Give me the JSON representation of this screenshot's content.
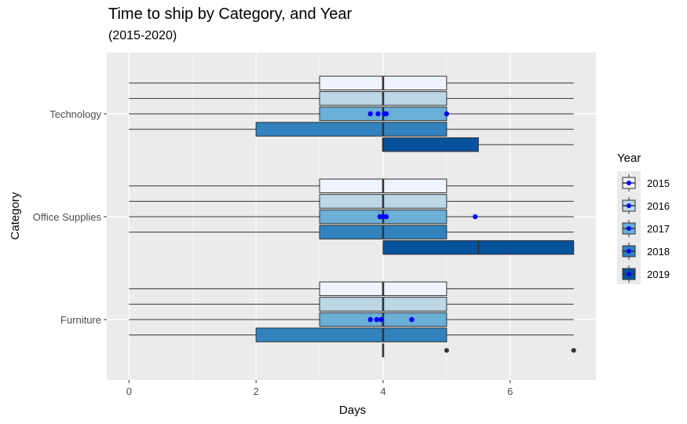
{
  "chart_data": {
    "type": "boxplot",
    "title": "Time to ship by Category, and Year",
    "subtitle": "(2015-2020)",
    "xlabel": "Days",
    "ylabel": "Category",
    "xlim": [
      -0.35,
      7.35
    ],
    "x_ticks": [
      0,
      2,
      4,
      6
    ],
    "grid": true,
    "legend": {
      "title": "Year",
      "position": "right",
      "items": [
        "2015",
        "2016",
        "2017",
        "2018",
        "2019"
      ]
    },
    "colors": {
      "2015": "#eff3ff",
      "2016": "#bdd7e7",
      "2017": "#6baed6",
      "2018": "#3182bd",
      "2019": "#08519c",
      "panel": "#ebebeb",
      "mean_point": "#0000ff",
      "outlier": "#333333"
    },
    "categories": [
      "Technology",
      "Office Supplies",
      "Furniture"
    ],
    "boxes": [
      {
        "category": "Technology",
        "year": "2015",
        "min": 0,
        "q1": 3,
        "median": 4,
        "q3": 5,
        "max": 7
      },
      {
        "category": "Technology",
        "year": "2016",
        "min": 0,
        "q1": 3,
        "median": 4,
        "q3": 5,
        "max": 7
      },
      {
        "category": "Technology",
        "year": "2017",
        "min": 0,
        "q1": 3,
        "median": 4,
        "q3": 5,
        "max": 7
      },
      {
        "category": "Technology",
        "year": "2018",
        "min": 0,
        "q1": 2,
        "median": 4,
        "q3": 5,
        "max": 7
      },
      {
        "category": "Technology",
        "year": "2019",
        "min": 4,
        "q1": 4,
        "median": 4,
        "q3": 5.5,
        "max": 7
      },
      {
        "category": "Office Supplies",
        "year": "2015",
        "min": 0,
        "q1": 3,
        "median": 4,
        "q3": 5,
        "max": 7
      },
      {
        "category": "Office Supplies",
        "year": "2016",
        "min": 0,
        "q1": 3,
        "median": 4,
        "q3": 5,
        "max": 7
      },
      {
        "category": "Office Supplies",
        "year": "2017",
        "min": 0,
        "q1": 3,
        "median": 4,
        "q3": 5,
        "max": 7
      },
      {
        "category": "Office Supplies",
        "year": "2018",
        "min": 0,
        "q1": 3,
        "median": 4,
        "q3": 5,
        "max": 7
      },
      {
        "category": "Office Supplies",
        "year": "2019",
        "min": 4,
        "q1": 4,
        "median": 5.5,
        "q3": 7,
        "max": 7
      },
      {
        "category": "Furniture",
        "year": "2015",
        "min": 0,
        "q1": 3,
        "median": 4,
        "q3": 5,
        "max": 7
      },
      {
        "category": "Furniture",
        "year": "2016",
        "min": 0,
        "q1": 3,
        "median": 4,
        "q3": 5,
        "max": 7
      },
      {
        "category": "Furniture",
        "year": "2017",
        "min": 0,
        "q1": 3,
        "median": 4,
        "q3": 5,
        "max": 7
      },
      {
        "category": "Furniture",
        "year": "2018",
        "min": 0,
        "q1": 2,
        "median": 4,
        "q3": 5,
        "max": 7
      },
      {
        "category": "Furniture",
        "year": "2019",
        "min": 4,
        "q1": 4,
        "median": 4,
        "q3": 4,
        "max": 4,
        "outliers": [
          5,
          7
        ]
      }
    ],
    "mean_points": [
      {
        "category": "Technology",
        "year": "2017",
        "x": [
          3.8,
          3.92,
          4.02,
          4.05,
          5.0
        ]
      },
      {
        "category": "Office Supplies",
        "year": "2017",
        "x": [
          3.95,
          4.0,
          4.05,
          5.45
        ]
      },
      {
        "category": "Furniture",
        "year": "2017",
        "x": [
          3.8,
          3.9,
          3.97,
          4.45
        ]
      }
    ]
  }
}
